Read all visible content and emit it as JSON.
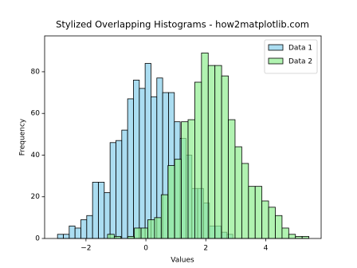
{
  "chart_data": {
    "type": "histogram",
    "title": "Stylized Overlapping Histograms - how2matplotlib.com",
    "xlabel": "Values",
    "ylabel": "Frequency",
    "xlim": [
      -3.38,
      5.85
    ],
    "ylim": [
      0,
      97.2
    ],
    "xticks": [
      {
        "value": -2,
        "label": "−2"
      },
      0,
      2,
      4
    ],
    "yticks": [
      0,
      20,
      40,
      60,
      80
    ],
    "legend": "upper right",
    "series": [
      {
        "name": "Data 1",
        "color": "#87ceeb",
        "bins": [
          -2.95,
          -2.755,
          -2.56,
          -2.365,
          -2.17,
          -1.975,
          -1.78,
          -1.585,
          -1.39,
          -1.195,
          -1.0,
          -0.805,
          -0.61,
          -0.415,
          -0.22,
          -0.025,
          0.17,
          0.365,
          0.56,
          0.755,
          0.95,
          1.145,
          1.34,
          1.535,
          1.73,
          1.925,
          2.12,
          2.315,
          2.51,
          2.705,
          2.9
        ],
        "values": [
          2,
          2,
          6,
          5,
          9,
          11,
          27,
          27,
          22,
          46,
          47,
          52,
          67,
          76,
          72,
          84,
          68,
          77,
          70,
          70,
          56,
          48,
          40,
          24,
          24,
          17,
          6,
          6,
          3,
          2
        ]
      },
      {
        "name": "Data 2",
        "color": "#90ee90",
        "bins": [
          -1.28,
          -1.056,
          -0.832,
          -0.608,
          -0.384,
          -0.16,
          0.064,
          0.288,
          0.512,
          0.736,
          0.96,
          1.184,
          1.408,
          1.632,
          1.856,
          2.08,
          2.304,
          2.528,
          2.752,
          2.976,
          3.2,
          3.424,
          3.648,
          3.872,
          4.096,
          4.32,
          4.544,
          4.768,
          4.992,
          5.216,
          5.44
        ],
        "values": [
          2,
          1,
          0,
          1,
          5,
          5,
          9,
          10,
          21,
          35,
          38,
          56,
          57,
          75,
          89,
          83,
          83,
          78,
          57,
          44,
          36,
          25,
          25,
          18,
          15,
          11,
          5,
          2,
          1,
          1
        ]
      }
    ]
  }
}
